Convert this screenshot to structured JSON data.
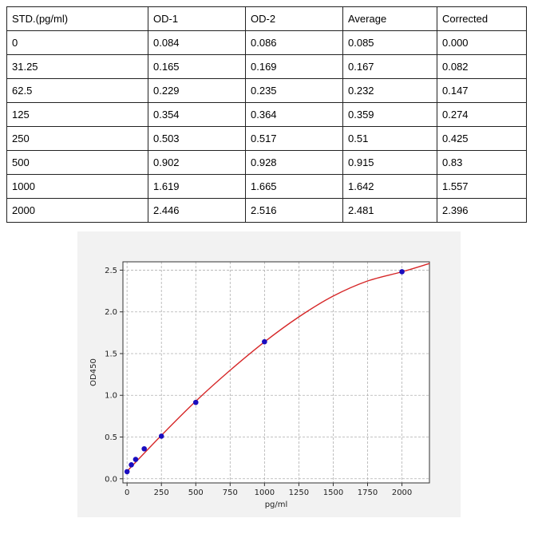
{
  "table": {
    "headers": [
      "STD.(pg/ml)",
      "OD-1",
      "OD-2",
      "Average",
      "Corrected"
    ],
    "rows": [
      [
        "0",
        "0.084",
        "0.086",
        "0.085",
        "0.000"
      ],
      [
        "31.25",
        "0.165",
        "0.169",
        "0.167",
        "0.082"
      ],
      [
        "62.5",
        "0.229",
        "0.235",
        "0.232",
        "0.147"
      ],
      [
        "125",
        "0.354",
        "0.364",
        "0.359",
        "0.274"
      ],
      [
        "250",
        "0.503",
        "0.517",
        "0.51",
        "0.425"
      ],
      [
        "500",
        "0.902",
        "0.928",
        "0.915",
        "0.83"
      ],
      [
        "1000",
        "1.619",
        "1.665",
        "1.642",
        "1.557"
      ],
      [
        "2000",
        "2.446",
        "2.516",
        "2.481",
        "2.396"
      ]
    ]
  },
  "chart_data": {
    "type": "scatter",
    "title": "",
    "xlabel": "pg/ml",
    "ylabel": "OD450",
    "xlim": [
      -30,
      2200
    ],
    "ylim": [
      -0.05,
      2.6
    ],
    "xticks": [
      0,
      250,
      500,
      750,
      1000,
      1250,
      1500,
      1750,
      2000
    ],
    "yticks": [
      0.0,
      0.5,
      1.0,
      1.5,
      2.0,
      2.5
    ],
    "xtick_labels": [
      "0",
      "250",
      "500",
      "750",
      "1000",
      "1250",
      "1500",
      "1750",
      "2000"
    ],
    "ytick_labels": [
      "0.0",
      "0.5",
      "1.0",
      "1.5",
      "2.0",
      "2.5"
    ],
    "grid": true,
    "series": [
      {
        "kind": "points",
        "x": [
          0,
          31.25,
          62.5,
          125,
          250,
          500,
          1000,
          2000
        ],
        "y": [
          0.085,
          0.167,
          0.232,
          0.359,
          0.51,
          0.915,
          1.642,
          2.481
        ],
        "color": "#1a0dbf"
      },
      {
        "kind": "fit-line",
        "x": [
          0,
          250,
          500,
          750,
          1000,
          1250,
          1500,
          1750,
          2000,
          2200
        ],
        "y": [
          0.09,
          0.52,
          0.93,
          1.3,
          1.64,
          1.94,
          2.19,
          2.37,
          2.48,
          2.58
        ],
        "color": "#d62728"
      }
    ]
  },
  "colors": {
    "panel_bg": "#f2f2f2",
    "plot_bg": "#ffffff",
    "grid": "#b0b0b0"
  }
}
